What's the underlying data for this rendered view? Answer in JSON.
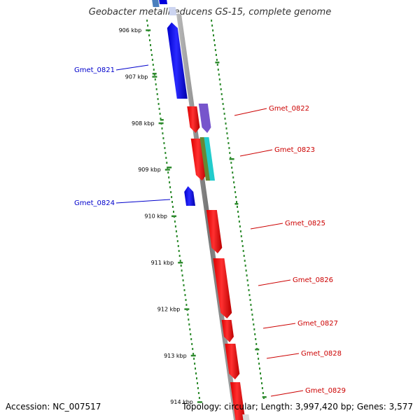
{
  "title": "Geobacter metallireducens GS-15, complete genome",
  "footer": {
    "accession_label": "Accession:",
    "accession": "NC_007517",
    "topology_label": "Topology:",
    "topology": "circular;",
    "length_label": "Length:",
    "length": "3,997,420 bp;",
    "genes_label": "Genes:",
    "genes": "3,577"
  },
  "ticks": [
    "906 kbp",
    "907 kbp",
    "908 kbp",
    "909 kbp",
    "910 kbp",
    "911 kbp",
    "912 kbp",
    "913 kbp",
    "914 kbp"
  ],
  "genes": [
    {
      "name": "Gmet_0821",
      "strand": "reverse",
      "color": "#0000ee"
    },
    {
      "name": "Gmet_0822",
      "strand": "forward",
      "color": "#ff0000"
    },
    {
      "name": "Gmet_0823",
      "strand": "forward",
      "color": "#ff0000"
    },
    {
      "name": "Gmet_0824",
      "strand": "reverse",
      "color": "#0000ee"
    },
    {
      "name": "Gmet_0825",
      "strand": "forward",
      "color": "#ff0000"
    },
    {
      "name": "Gmet_0826",
      "strand": "forward",
      "color": "#ff0000"
    },
    {
      "name": "Gmet_0827",
      "strand": "forward",
      "color": "#ff0000"
    },
    {
      "name": "Gmet_0828",
      "strand": "forward",
      "color": "#ff0000"
    },
    {
      "name": "Gmet_0829",
      "strand": "forward",
      "color": "#ff0000"
    }
  ],
  "colors": {
    "forward": "#ff0000",
    "reverse": "#0000ee",
    "backbone": "#888888",
    "gc_dots": "#2e8b2e",
    "forward_label": "#cc0000",
    "reverse_label": "#0000cc"
  }
}
